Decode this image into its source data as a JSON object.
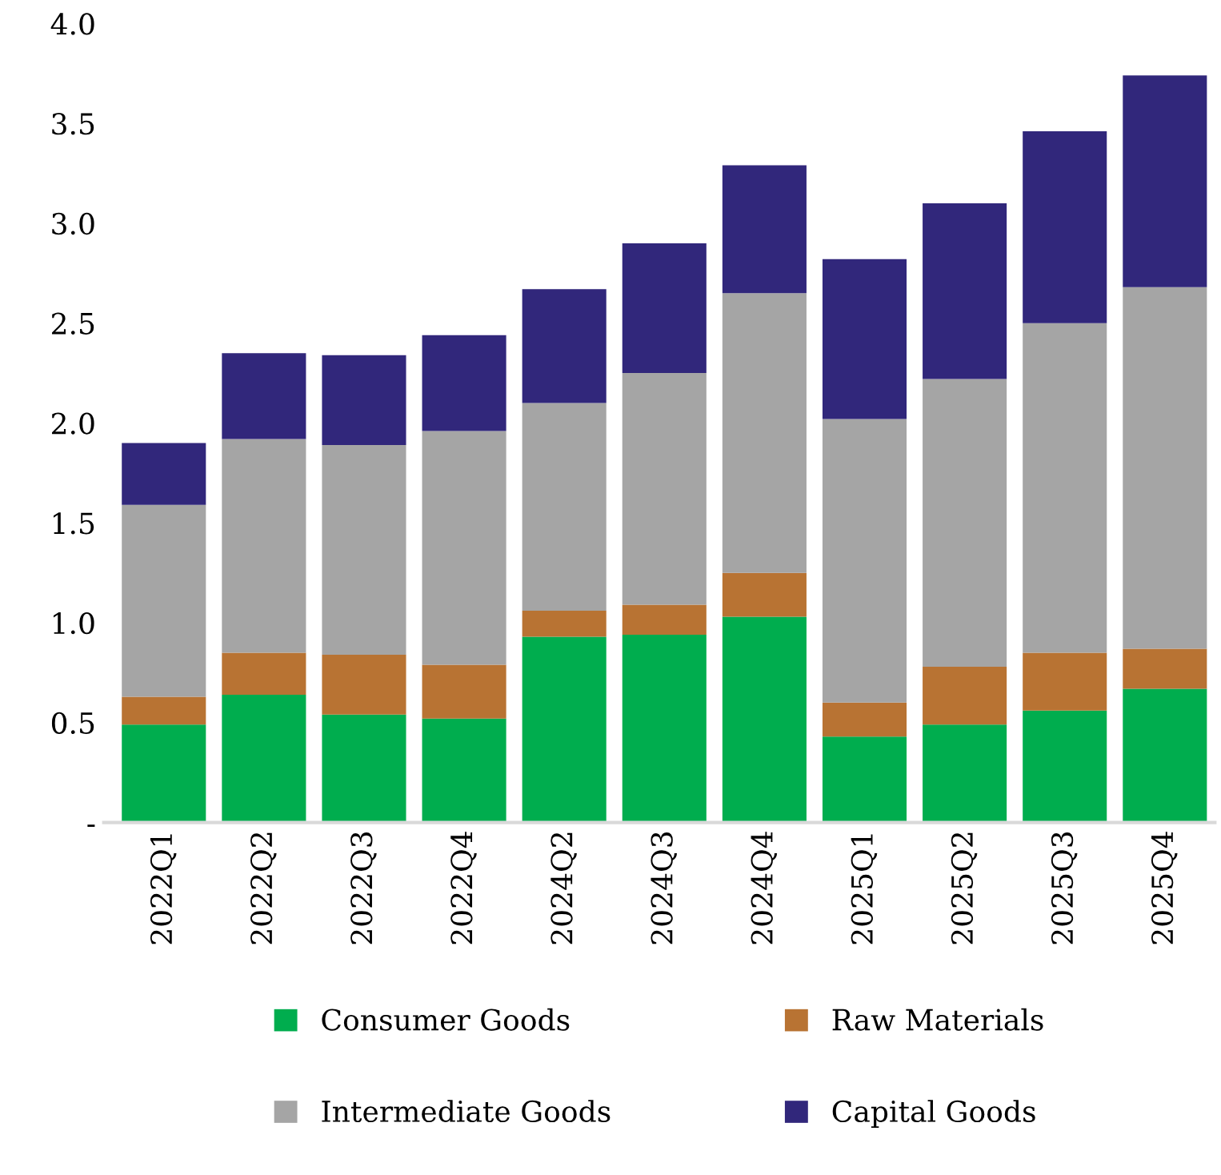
{
  "chart_data": {
    "type": "bar",
    "stacked": true,
    "categories": [
      "2022Q1",
      "2022Q2",
      "2022Q3",
      "2022Q4",
      "2024Q2",
      "2024Q3",
      "2024Q4",
      "2025Q1",
      "2025Q2",
      "2025Q3",
      "2025Q4"
    ],
    "series": [
      {
        "name": "Consumer Goods",
        "color": "#00ad4e",
        "values": [
          0.49,
          0.64,
          0.54,
          0.52,
          0.93,
          0.94,
          1.03,
          0.43,
          0.49,
          0.56,
          0.67
        ]
      },
      {
        "name": "Raw Materials",
        "color": "#b87333",
        "values": [
          0.14,
          0.21,
          0.3,
          0.27,
          0.13,
          0.15,
          0.22,
          0.17,
          0.29,
          0.29,
          0.2
        ]
      },
      {
        "name": "Intermediate Goods",
        "color": "#a5a5a5",
        "values": [
          0.96,
          1.07,
          1.05,
          1.17,
          1.04,
          1.16,
          1.4,
          1.42,
          1.44,
          1.65,
          1.81
        ]
      },
      {
        "name": "Capital Goods",
        "color": "#31277b",
        "values": [
          0.31,
          0.43,
          0.45,
          0.48,
          0.57,
          0.65,
          0.64,
          0.8,
          0.88,
          0.96,
          1.06
        ]
      }
    ],
    "ylim": [
      0,
      4.0
    ],
    "yticks": [
      {
        "value": 0,
        "label": "-"
      },
      0.5,
      {
        "value": 1,
        "label": "1.0"
      },
      1.5,
      {
        "value": 2,
        "label": "2.0"
      },
      2.5,
      {
        "value": 3,
        "label": "3.0"
      },
      3.5,
      {
        "value": 4,
        "label": "4.0"
      }
    ],
    "legend": "bottom",
    "grid": false
  }
}
